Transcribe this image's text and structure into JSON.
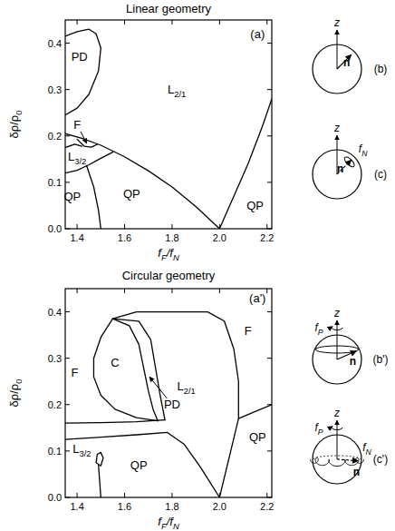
{
  "chart_data": [
    {
      "type": "line",
      "title": "Linear geometry",
      "color": "#000000",
      "xlabel": [
        {
          "t": "f"
        },
        {
          "t": "F",
          "sub": true
        },
        {
          "t": "/f"
        },
        {
          "t": "N",
          "sub": true
        }
      ],
      "ylabel": [
        {
          "t": "δρ/ρ"
        },
        {
          "t": "0",
          "sub": true
        }
      ],
      "xlim": [
        1.35,
        2.22
      ],
      "ylim": [
        0,
        0.45
      ],
      "xticks": [
        1.4,
        1.6,
        1.8,
        {
          "value": 2.0,
          "label": "2.0"
        },
        2.2
      ],
      "yticks": [
        {
          "value": 0,
          "label": "0.0"
        },
        0.1,
        0.2,
        0.3,
        0.4
      ],
      "series": [
        {
          "x": [
            1.35,
            1.4,
            1.45,
            1.48,
            1.5,
            1.49,
            1.45,
            1.4,
            1.35
          ],
          "values": [
            0.415,
            0.425,
            0.43,
            0.42,
            0.39,
            0.34,
            0.29,
            0.26,
            0.245
          ]
        },
        {
          "x": [
            1.35,
            1.42,
            1.5,
            1.6,
            1.7,
            1.8,
            1.9,
            2.0
          ],
          "values": [
            0.205,
            0.195,
            0.18,
            0.155,
            0.125,
            0.09,
            0.048,
            0.0
          ]
        },
        {
          "x": [
            1.4,
            1.43,
            1.46,
            1.485
          ],
          "values": [
            0.193,
            0.178,
            0.176,
            0.182
          ]
        },
        {
          "x": [
            1.35,
            1.39,
            1.42
          ],
          "values": [
            0.175,
            0.182,
            0.178
          ]
        },
        {
          "x": [
            1.35,
            1.4,
            1.45,
            1.5,
            1.55
          ],
          "values": [
            0.12,
            0.126,
            0.138,
            0.152,
            0.165
          ]
        },
        {
          "x": [
            1.44,
            1.47,
            1.49,
            1.5
          ],
          "values": [
            0.136,
            0.09,
            0.04,
            0.0
          ]
        },
        {
          "x": [
            2.0,
            2.06,
            2.12,
            2.18,
            2.22
          ],
          "values": [
            0.0,
            0.07,
            0.14,
            0.22,
            0.28
          ]
        }
      ],
      "annotations": [
        {
          "text": [
            {
              "t": "PD"
            }
          ],
          "x": 1.41,
          "y": 0.37
        },
        {
          "text": [
            {
              "t": "F"
            }
          ],
          "x": 1.4,
          "y": 0.225,
          "arrow_to": [
            1.44,
            0.184
          ]
        },
        {
          "text": [
            {
              "t": "L"
            },
            {
              "t": "3/2",
              "sub": true
            }
          ],
          "x": 1.4,
          "y": 0.155
        },
        {
          "text": [
            {
              "t": "QP"
            }
          ],
          "x": 1.38,
          "y": 0.07
        },
        {
          "text": [
            {
              "t": "QP"
            }
          ],
          "x": 1.63,
          "y": 0.075
        },
        {
          "text": [
            {
              "t": "L"
            },
            {
              "t": "2/1",
              "sub": true
            }
          ],
          "x": 1.82,
          "y": 0.3
        },
        {
          "text": [
            {
              "t": "QP"
            }
          ],
          "x": 2.15,
          "y": 0.05
        },
        {
          "text": [
            {
              "t": "(a)"
            }
          ],
          "x": 2.16,
          "y": 0.42
        }
      ]
    },
    {
      "type": "line",
      "title": "Circular geometry",
      "color": "#000000",
      "xlabel": [
        {
          "t": "f"
        },
        {
          "t": "F",
          "sub": true
        },
        {
          "t": "/f"
        },
        {
          "t": "N",
          "sub": true
        }
      ],
      "ylabel": [
        {
          "t": "δρ/ρ"
        },
        {
          "t": "0",
          "sub": true
        }
      ],
      "xlim": [
        1.35,
        2.22
      ],
      "ylim": [
        0,
        0.45
      ],
      "xticks": [
        1.4,
        1.6,
        1.8,
        {
          "value": 2.0,
          "label": "2.0"
        },
        2.2
      ],
      "yticks": [
        {
          "value": 0,
          "label": "0.0"
        },
        0.1,
        0.2,
        0.3,
        0.4
      ],
      "series": [
        {
          "x": [
            1.55,
            1.5,
            1.47,
            1.47,
            1.5,
            1.56,
            1.65,
            1.74
          ],
          "values": [
            0.385,
            0.345,
            0.3,
            0.26,
            0.22,
            0.19,
            0.172,
            0.165
          ]
        },
        {
          "x": [
            1.55,
            1.62,
            1.66,
            1.68,
            1.7,
            1.72,
            1.74
          ],
          "values": [
            0.385,
            0.37,
            0.33,
            0.28,
            0.23,
            0.19,
            0.165
          ]
        },
        {
          "x": [
            1.55,
            1.66,
            1.71,
            1.73,
            1.75,
            1.77
          ],
          "values": [
            0.385,
            0.38,
            0.34,
            0.28,
            0.22,
            0.167
          ]
        },
        {
          "x": [
            1.35,
            1.5,
            1.65,
            1.77
          ],
          "values": [
            0.16,
            0.161,
            0.163,
            0.167
          ]
        },
        {
          "x": [
            1.55,
            1.65,
            1.8,
            1.95,
            2.02,
            2.06,
            2.08,
            2.08
          ],
          "values": [
            0.385,
            0.4,
            0.4,
            0.4,
            0.38,
            0.32,
            0.25,
            0.17
          ]
        },
        {
          "x": [
            1.35,
            1.5,
            1.65,
            1.78,
            1.85,
            1.92,
            2.0
          ],
          "values": [
            0.125,
            0.13,
            0.135,
            0.14,
            0.115,
            0.065,
            0.0
          ]
        },
        {
          "x": [
            2.0,
            2.04,
            2.08,
            2.15,
            2.22
          ],
          "values": [
            0.0,
            0.085,
            0.17,
            0.185,
            0.2
          ]
        },
        {
          "x": [
            1.48,
            1.485,
            1.5,
            1.51,
            1.5,
            1.48
          ],
          "values": [
            0.075,
            0.093,
            0.097,
            0.085,
            0.068,
            0.075
          ]
        },
        {
          "x": [
            1.49,
            1.495,
            1.5
          ],
          "values": [
            0.07,
            0.035,
            0.0
          ]
        }
      ],
      "annotations": [
        {
          "text": [
            {
              "t": "F"
            }
          ],
          "x": 1.39,
          "y": 0.27
        },
        {
          "text": [
            {
              "t": "C"
            }
          ],
          "x": 1.56,
          "y": 0.29
        },
        {
          "text": [
            {
              "t": "PD"
            }
          ],
          "x": 1.8,
          "y": 0.2,
          "arrow_to": [
            1.705,
            0.26
          ]
        },
        {
          "text": [
            {
              "t": "L"
            },
            {
              "t": "2/1",
              "sub": true
            }
          ],
          "x": 1.86,
          "y": 0.24
        },
        {
          "text": [
            {
              "t": "F"
            }
          ],
          "x": 2.12,
          "y": 0.36
        },
        {
          "text": [
            {
              "t": "QP"
            }
          ],
          "x": 2.16,
          "y": 0.13
        },
        {
          "text": [
            {
              "t": "QP"
            }
          ],
          "x": 1.66,
          "y": 0.07
        },
        {
          "text": [
            {
              "t": "L"
            },
            {
              "t": "3/2",
              "sub": true
            }
          ],
          "x": 1.42,
          "y": 0.105
        },
        {
          "text": [
            {
              "t": "(a')"
            }
          ],
          "x": 2.16,
          "y": 0.43
        }
      ]
    }
  ],
  "diagrams": [
    {
      "label": [
        {
          "t": "(b)"
        }
      ],
      "z": [
        {
          "t": "z"
        }
      ],
      "n": [
        {
          "t": "n"
        }
      ]
    },
    {
      "label": [
        {
          "t": "(c)"
        }
      ],
      "z": [
        {
          "t": "z"
        }
      ],
      "n": [
        {
          "t": "n"
        }
      ],
      "f_N": [
        {
          "t": "f"
        },
        {
          "t": "N",
          "sub": true
        }
      ]
    },
    {
      "label": [
        {
          "t": "(b')"
        }
      ],
      "z": [
        {
          "t": "z"
        }
      ],
      "n": [
        {
          "t": "n"
        }
      ],
      "f_P": [
        {
          "t": "f"
        },
        {
          "t": "P",
          "sub": true
        }
      ]
    },
    {
      "label": [
        {
          "t": "(c')"
        }
      ],
      "z": [
        {
          "t": "z"
        }
      ],
      "n": [
        {
          "t": "n"
        }
      ],
      "f_P": [
        {
          "t": "f"
        },
        {
          "t": "P",
          "sub": true
        }
      ],
      "f_N": [
        {
          "t": "f"
        },
        {
          "t": "N",
          "sub": true
        }
      ]
    }
  ]
}
